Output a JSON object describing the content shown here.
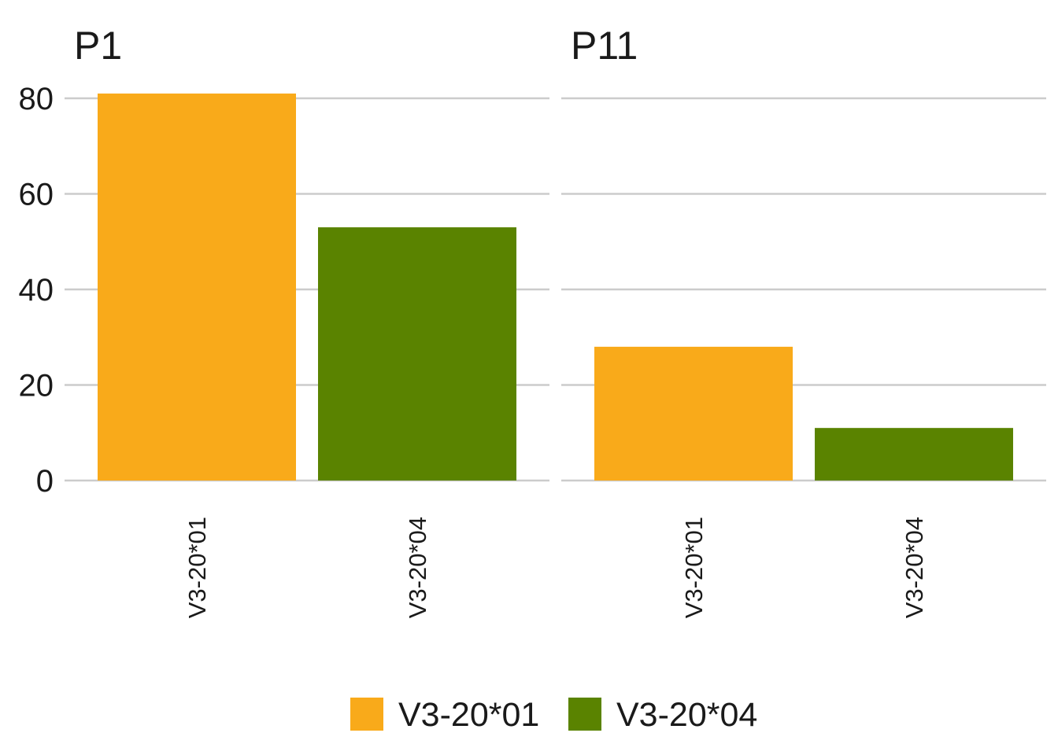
{
  "chart_data": {
    "type": "bar",
    "facets": [
      {
        "title": "P1",
        "categories": [
          "V3-20*01",
          "V3-20*04"
        ],
        "values": [
          81,
          53
        ]
      },
      {
        "title": "P11",
        "categories": [
          "V3-20*01",
          "V3-20*04"
        ],
        "values": [
          28,
          11
        ]
      }
    ],
    "ylim": [
      0,
      80
    ],
    "yticks": [
      0,
      20,
      40,
      60,
      80
    ],
    "grid": "horizontal",
    "legend_position": "bottom",
    "legend": [
      {
        "label": "V3-20*01",
        "color": "#F9AA1A"
      },
      {
        "label": "V3-20*04",
        "color": "#5A8300"
      }
    ],
    "xlabel": "",
    "ylabel": ""
  }
}
